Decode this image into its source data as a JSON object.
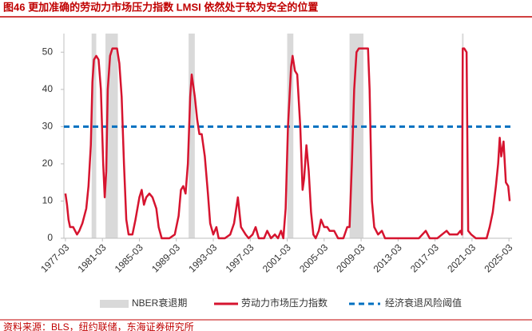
{
  "chart_data": {
    "type": "line",
    "title": "图46  更加准确的劳动力市场压力指数 LMSI 依然处于较为安全的位置",
    "source": "资料来源：BLS，纽约联储，东海证券研究所",
    "xlim": [
      "1977-01",
      "2025-07"
    ],
    "xticks": [
      "1977-03",
      "1981-03",
      "1985-03",
      "1989-03",
      "1993-03",
      "1997-03",
      "2001-03",
      "2005-03",
      "2009-03",
      "2013-03",
      "2017-03",
      "2021-03",
      "2025-03"
    ],
    "ylim": [
      0,
      55
    ],
    "yticks": [
      0,
      10,
      20,
      30,
      40,
      50
    ],
    "recessions": {
      "name": "NBER衰退期",
      "color": "#d9d9d9",
      "periods": [
        [
          "1980-01",
          "1980-07"
        ],
        [
          "1981-07",
          "1982-11"
        ],
        [
          "1990-07",
          "1991-03"
        ],
        [
          "2001-03",
          "2001-11"
        ],
        [
          "2007-12",
          "2009-06"
        ],
        [
          "2020-02",
          "2020-04"
        ]
      ]
    },
    "threshold": {
      "name": "经济衰退风险阈值",
      "value": 30,
      "color": "#0070c0"
    },
    "series": [
      {
        "name": "劳动力市场压力指数",
        "color": "#d6142f",
        "x": [
          "1977-03",
          "1977-05",
          "1977-07",
          "1977-09",
          "1978-01",
          "1978-06",
          "1978-09",
          "1979-01",
          "1979-06",
          "1979-09",
          "1979-12",
          "1980-02",
          "1980-04",
          "1980-07",
          "1980-10",
          "1981-01",
          "1981-04",
          "1981-06",
          "1981-08",
          "1981-10",
          "1982-01",
          "1982-04",
          "1982-10",
          "1983-01",
          "1983-04",
          "1983-07",
          "1983-10",
          "1984-01",
          "1984-06",
          "1984-10",
          "1985-03",
          "1985-06",
          "1985-09",
          "1985-12",
          "1986-04",
          "1986-08",
          "1987-01",
          "1987-04",
          "1987-08",
          "1988-06",
          "1989-01",
          "1989-06",
          "1989-09",
          "1989-12",
          "1990-03",
          "1990-06",
          "1990-09",
          "1990-11",
          "1991-03",
          "1991-06",
          "1991-09",
          "1991-12",
          "1992-04",
          "1992-08",
          "1992-11",
          "1993-03",
          "1993-07",
          "1993-10",
          "1994-06",
          "1995-01",
          "1995-06",
          "1995-11",
          "1996-03",
          "1996-09",
          "1997-01",
          "1997-06",
          "1997-10",
          "1998-02",
          "1998-09",
          "1999-01",
          "1999-06",
          "1999-11",
          "2000-03",
          "2000-07",
          "2000-10",
          "2001-01",
          "2001-04",
          "2001-08",
          "2001-10",
          "2002-01",
          "2002-04",
          "2002-08",
          "2002-11",
          "2003-01",
          "2003-04",
          "2003-07",
          "2003-10",
          "2004-01",
          "2004-04",
          "2004-08",
          "2004-11",
          "2005-03",
          "2005-07",
          "2005-10",
          "2006-04",
          "2006-09",
          "2007-04",
          "2007-09",
          "2007-12",
          "2008-03",
          "2008-06",
          "2008-09",
          "2008-12",
          "2009-06",
          "2009-12",
          "2010-02",
          "2010-05",
          "2010-08",
          "2011-01",
          "2011-06",
          "2011-10",
          "2013-06",
          "2014-06",
          "2015-06",
          "2016-03",
          "2016-08",
          "2017-06",
          "2017-12",
          "2018-06",
          "2018-10",
          "2019-03",
          "2019-08",
          "2019-12",
          "2020-02",
          "2020-03",
          "2020-05",
          "2020-08",
          "2020-10",
          "2021-02",
          "2021-08",
          "2022-03",
          "2022-10",
          "2023-02",
          "2023-06",
          "2023-10",
          "2024-01",
          "2024-03",
          "2024-05",
          "2024-08",
          "2024-11",
          "2025-02",
          "2025-04"
        ],
        "values": [
          12,
          9,
          5,
          3,
          3,
          1,
          2,
          4,
          8,
          14,
          25,
          42,
          48,
          49,
          48,
          40,
          20,
          11,
          18,
          40,
          49,
          51,
          51,
          47,
          38,
          20,
          5,
          1,
          1,
          5,
          11,
          13,
          9,
          11,
          12,
          11,
          8,
          3,
          0,
          0,
          1,
          6,
          13,
          14,
          12,
          20,
          38,
          44,
          38,
          32,
          28,
          28,
          22,
          12,
          4,
          1,
          3,
          0,
          0,
          1,
          4,
          11,
          3,
          1,
          0,
          1,
          3,
          0,
          0,
          2,
          0,
          1,
          0,
          2,
          0,
          8,
          30,
          46,
          49,
          45,
          44,
          30,
          13,
          16,
          25,
          18,
          7,
          1,
          0,
          2,
          5,
          3,
          3,
          2,
          2,
          0,
          0,
          3,
          3,
          20,
          40,
          50,
          51,
          51,
          51,
          40,
          10,
          3,
          1,
          2,
          0,
          0,
          0,
          0,
          2,
          0,
          0,
          1,
          2,
          1,
          1,
          1,
          2,
          1,
          51,
          51,
          50,
          2,
          1,
          0,
          0,
          0,
          3,
          7,
          14,
          20,
          27,
          22,
          26,
          15,
          14,
          10
        ]
      }
    ]
  }
}
